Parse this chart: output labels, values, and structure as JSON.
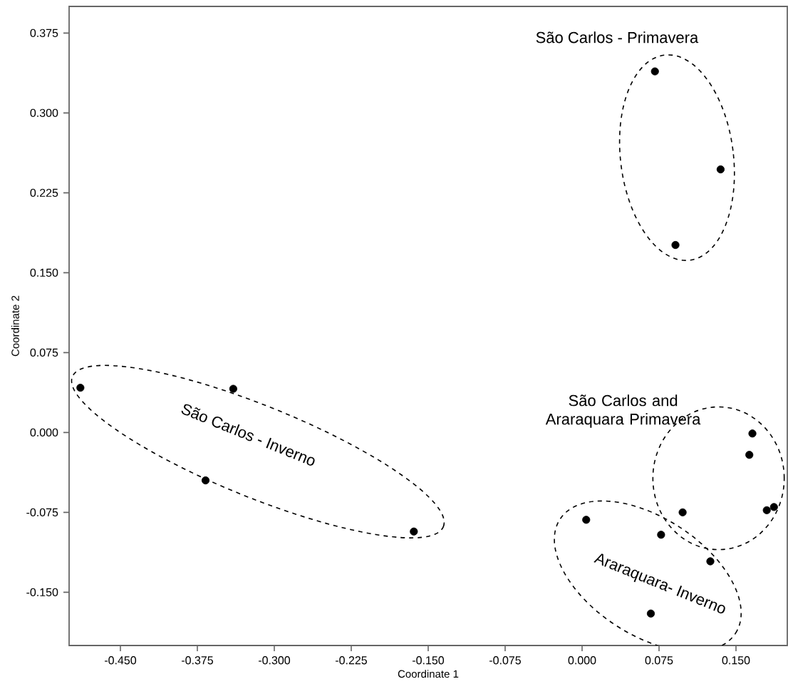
{
  "chart_data": {
    "type": "scatter",
    "xlabel": "Coordinate 1",
    "ylabel": "Coordinate 2",
    "xlim": [
      -0.5,
      0.2
    ],
    "ylim": [
      -0.2,
      0.4
    ],
    "xticks": [
      {
        "value": -0.45,
        "label": "-0.450"
      },
      {
        "value": -0.375,
        "label": "-0.375"
      },
      {
        "value": -0.3,
        "label": "-0.300"
      },
      {
        "value": -0.225,
        "label": "-0.225"
      },
      {
        "value": -0.15,
        "label": "-0.150"
      },
      {
        "value": -0.075,
        "label": "-0.075"
      },
      {
        "value": 0,
        "label": "0.000"
      },
      {
        "value": 0.075,
        "label": "0.075"
      },
      {
        "value": 0.15,
        "label": "0.150"
      }
    ],
    "yticks": [
      {
        "value": -0.15,
        "label": "-0.150"
      },
      {
        "value": -0.075,
        "label": "-0.075"
      },
      {
        "value": 0,
        "label": "0.000"
      },
      {
        "value": 0.075,
        "label": "0.075"
      },
      {
        "value": 0.15,
        "label": "0.150"
      },
      {
        "value": 0.225,
        "label": "0.225"
      },
      {
        "value": 0.3,
        "label": "0.300"
      },
      {
        "value": 0.375,
        "label": "0.375"
      }
    ],
    "marker": "circle",
    "grid": false,
    "series": [
      {
        "color": "#000000",
        "x": [
          -0.489,
          -0.34,
          -0.367,
          -0.164,
          0.071,
          0.135,
          0.091,
          0.166,
          0.163,
          0.098,
          0.18,
          0.187,
          0.004,
          0.077,
          0.125,
          0.067
        ],
        "values": [
          0.042,
          0.041,
          -0.045,
          -0.093,
          0.339,
          0.247,
          0.176,
          -0.001,
          -0.021,
          -0.075,
          -0.073,
          -0.07,
          -0.082,
          -0.096,
          -0.121,
          -0.17
        ]
      }
    ],
    "annotations": [
      "São Carlos - Primavera",
      "São Carlos and Araraquara Primavera",
      "São Carlos - Inverno",
      "Araraquara- Inverno"
    ]
  }
}
